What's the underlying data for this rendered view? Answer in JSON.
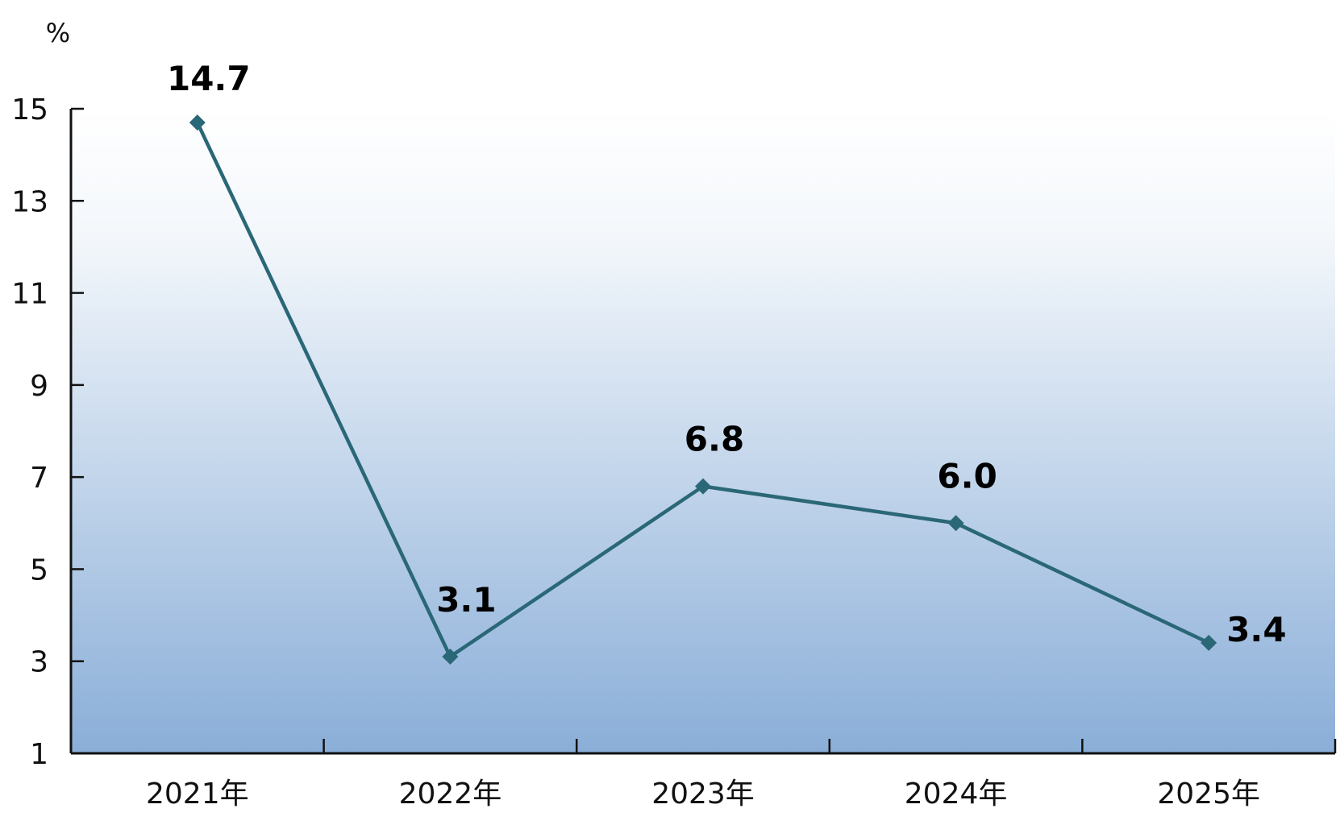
{
  "chart_data": {
    "type": "line",
    "title": "",
    "xlabel": "",
    "ylabel": "%",
    "categories": [
      "2021年",
      "2022年",
      "2023年",
      "2024年",
      "2025年"
    ],
    "series": [
      {
        "values": [
          14.7,
          3.1,
          6.8,
          6.0,
          3.4
        ],
        "value_labels": [
          "14.7",
          "3.1",
          "6.8",
          "6.0",
          "3.4"
        ]
      }
    ],
    "yticks": [
      "1",
      "3",
      "5",
      "7",
      "9",
      "11",
      "13",
      "15"
    ],
    "ylim": [
      1,
      15
    ],
    "grid": false,
    "legend": "none",
    "colors": {
      "line": "#2a6777",
      "marker": "#2a6777",
      "axis": "#111111",
      "background_top": "#ffffff",
      "background_bottom": "#8aaed8"
    }
  }
}
